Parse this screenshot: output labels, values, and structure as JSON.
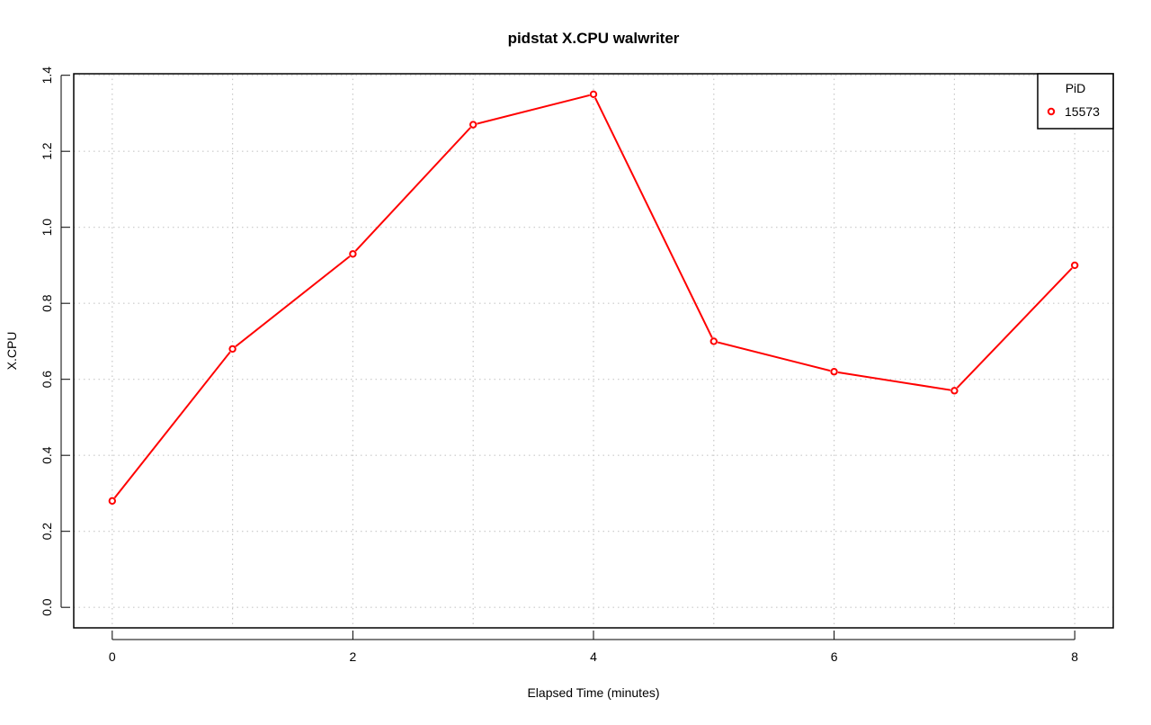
{
  "chart_data": {
    "type": "line",
    "title": "pidstat X.CPU walwriter",
    "xlabel": "Elapsed Time (minutes)",
    "ylabel": "X.CPU",
    "xlim": [
      -0.32,
      8.32
    ],
    "ylim": [
      -0.054,
      1.404
    ],
    "x_ticks": [
      0,
      2,
      4,
      6,
      8
    ],
    "y_ticks": [
      0.0,
      0.2,
      0.4,
      0.6,
      0.8,
      1.0,
      1.2,
      1.4
    ],
    "x_tick_labels": [
      "0",
      "2",
      "4",
      "6",
      "8"
    ],
    "y_tick_labels": [
      "0.0",
      "0.2",
      "0.4",
      "0.6",
      "0.8",
      "1.0",
      "1.2",
      "1.4"
    ],
    "grid_x": [
      0,
      1,
      2,
      3,
      4,
      5,
      6,
      7,
      8
    ],
    "grid_y": [
      0.0,
      0.2,
      0.4,
      0.6,
      0.8,
      1.0,
      1.2,
      1.4
    ],
    "grid": true,
    "legend": {
      "title": "PiD",
      "position": "top-right"
    },
    "series": [
      {
        "name": "15573",
        "color": "#ff0000",
        "marker": "open-circle",
        "x": [
          0,
          1,
          2,
          3,
          4,
          5,
          6,
          7,
          8
        ],
        "y": [
          0.28,
          0.68,
          0.93,
          1.27,
          1.35,
          0.7,
          0.62,
          0.57,
          0.9
        ]
      }
    ]
  }
}
